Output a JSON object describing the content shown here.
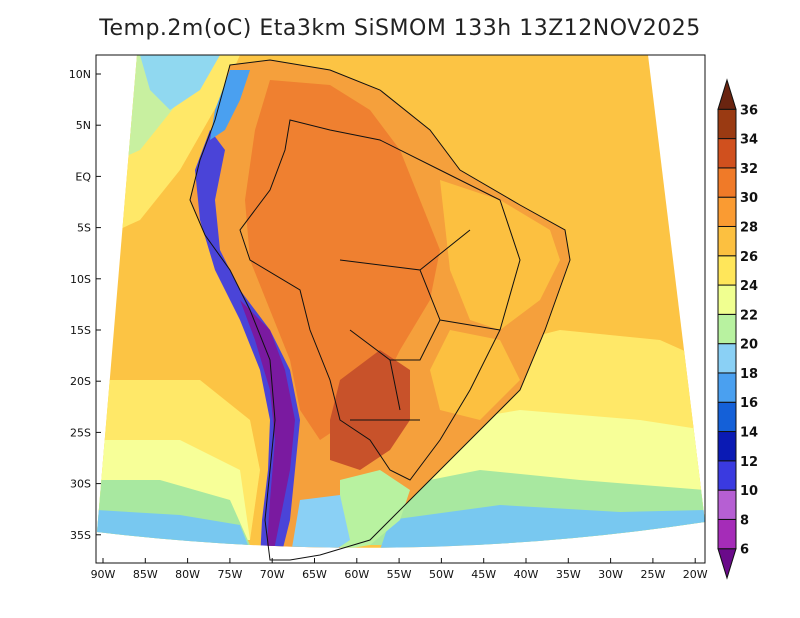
{
  "title": "Temp.2m(oC) Eta3km SiSMOM 133h 13Z12NOV2025",
  "map": {
    "lat_labels": [
      "10N",
      "5N",
      "EQ",
      "5S",
      "10S",
      "15S",
      "20S",
      "25S",
      "30S",
      "35S"
    ],
    "lon_labels": [
      "90W",
      "85W",
      "80W",
      "75W",
      "70W",
      "65W",
      "60W",
      "55W",
      "50W",
      "45W",
      "40W",
      "35W",
      "30W",
      "25W",
      "20W"
    ],
    "lon_range": [
      -90,
      -20
    ],
    "lat_range": [
      -37,
      11
    ]
  },
  "colorbar": {
    "labels": [
      "6",
      "8",
      "10",
      "12",
      "14",
      "16",
      "18",
      "20",
      "22",
      "24",
      "26",
      "28",
      "30",
      "32",
      "34",
      "36"
    ],
    "colors": [
      "#6a0a8a",
      "#a52cb8",
      "#b65fd3",
      "#3a3ae0",
      "#0a1ab4",
      "#1460d8",
      "#4aa0f0",
      "#8ad0f5",
      "#b8f2a0",
      "#f0ff90",
      "#ffe65a",
      "#fcc040",
      "#fa9b32",
      "#f07a28",
      "#d0501e",
      "#9a3a12",
      "#6a2410"
    ]
  },
  "fields": {
    "ocean_warm": "#fcc444",
    "ocean_mid": "#ffe868",
    "ocean_cool": "#f7ff98",
    "ocean_cold": "#a8e8a0",
    "ocean_colder": "#78c8f0",
    "land_hot": "#f5a03c",
    "land_hotter": "#ef8030",
    "land_max": "#c8522a",
    "andes": "#4a44d8",
    "andes_peak": "#7a1aa0"
  }
}
